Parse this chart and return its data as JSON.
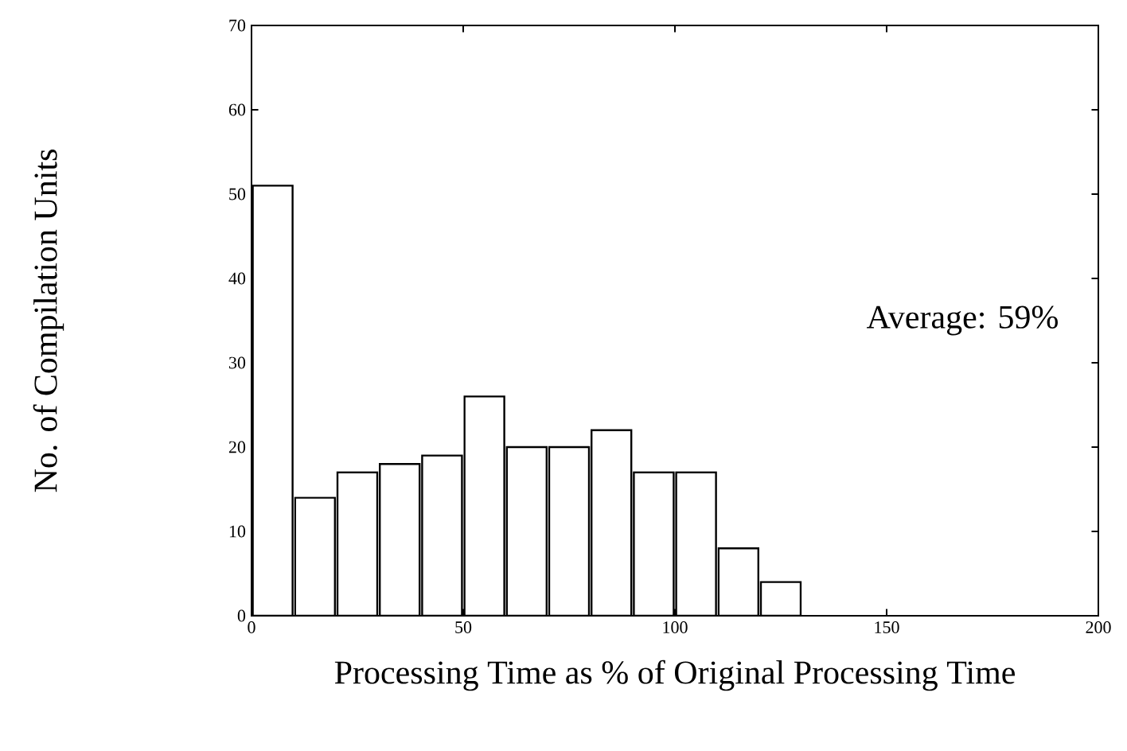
{
  "chart_data": {
    "type": "histogram",
    "xlabel": "Processing Time as % of Original Processing Time",
    "ylabel": "No. of Compilation Units",
    "bins": [
      0,
      10,
      20,
      30,
      40,
      50,
      60,
      70,
      80,
      90,
      100,
      110,
      120,
      130
    ],
    "values": [
      51,
      14,
      17,
      18,
      19,
      26,
      20,
      20,
      22,
      17,
      17,
      8,
      4
    ],
    "color": "#ffffff",
    "xlim": [
      0,
      200
    ],
    "xticks": [
      0,
      50,
      100,
      150,
      200
    ],
    "ylim": [
      0,
      70
    ],
    "yticks": [
      0,
      10,
      20,
      30,
      40,
      50,
      60,
      70
    ],
    "annotations": [
      "Average: 59%"
    ],
    "grid": false
  }
}
